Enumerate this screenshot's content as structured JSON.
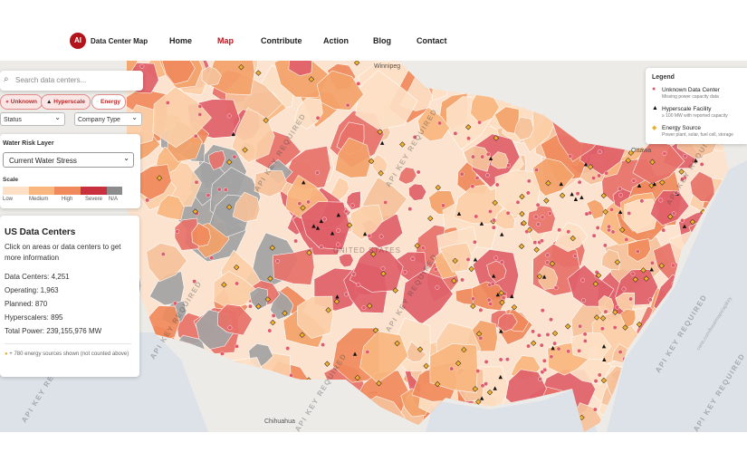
{
  "nav": {
    "logo": "AI",
    "brand": "Data Center Map",
    "links": [
      "Home",
      "Map",
      "Contribute",
      "Action",
      "Blog",
      "Contact"
    ]
  },
  "search": {
    "placeholder": "Search data centers..."
  },
  "filters": {
    "chips": [
      "Unknown",
      "Hyperscale",
      "Energy"
    ],
    "selects": [
      "Status",
      "Company Type"
    ]
  },
  "water_panel": {
    "title": "Water Risk Layer",
    "selected": "Current Water Stress",
    "scale_title": "Scale",
    "scale_labels": [
      "Low",
      "Medium",
      "High",
      "Severe",
      "N/A"
    ]
  },
  "info_panel": {
    "title": "US Data Centers",
    "subtitle": "Click on areas or data centers to get more information",
    "stats": [
      [
        "Data Centers:",
        "4,251"
      ],
      [
        "Operating:",
        "1,963"
      ],
      [
        "Planned:",
        "870"
      ],
      [
        "Hyperscalers:",
        "895"
      ],
      [
        "Total Power:",
        "239,155,976 MW"
      ]
    ],
    "note": "+ 780 energy sources shown (not counted above)"
  },
  "legend": {
    "title": "Legend",
    "items": [
      {
        "label": "Unknown Data Center",
        "desc": "Missing power capacity data"
      },
      {
        "label": "Hyperscale Facility",
        "desc": "≥ 100 MW with reported capacity"
      },
      {
        "label": "Energy Source",
        "desc": "Power plant, solar, fuel cell, storage"
      }
    ]
  },
  "map_labels": {
    "watermark": "API KEY REQUIRED",
    "attribution": "carto.com/basemaps/apikey",
    "country": "UNITED STATES",
    "cities": [
      "Winnipeg",
      "Ottawa",
      "Chihuahua"
    ]
  }
}
